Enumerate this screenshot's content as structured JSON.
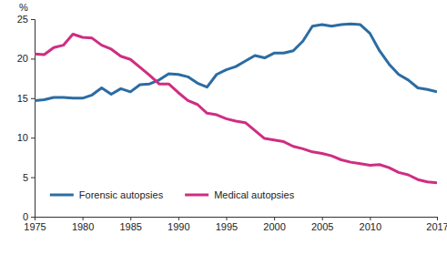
{
  "chart_data": {
    "type": "line",
    "ylabel": "%",
    "x": [
      1975,
      1976,
      1977,
      1978,
      1979,
      1980,
      1981,
      1982,
      1983,
      1984,
      1985,
      1986,
      1987,
      1988,
      1989,
      1990,
      1991,
      1992,
      1993,
      1994,
      1995,
      1996,
      1997,
      1998,
      1999,
      2000,
      2001,
      2002,
      2003,
      2004,
      2005,
      2006,
      2007,
      2008,
      2009,
      2010,
      2011,
      2012,
      2013,
      2014,
      2015,
      2016,
      2017
    ],
    "series": [
      {
        "name": "Forensic autopsies",
        "color": "#2b6ca3",
        "values": [
          14.7,
          14.8,
          15.1,
          15.1,
          15.0,
          15.0,
          15.4,
          16.3,
          15.5,
          16.2,
          15.8,
          16.7,
          16.8,
          17.3,
          18.1,
          18.0,
          17.7,
          16.9,
          16.4,
          18.0,
          18.6,
          19.0,
          19.7,
          20.4,
          20.1,
          20.7,
          20.7,
          21.0,
          22.2,
          24.1,
          24.3,
          24.1,
          24.3,
          24.4,
          24.3,
          23.2,
          21.0,
          19.3,
          18.0,
          17.3,
          16.3,
          16.1,
          15.8
        ]
      },
      {
        "name": "Medical autopsies",
        "color": "#cf2d82",
        "values": [
          20.6,
          20.5,
          21.4,
          21.7,
          23.1,
          22.7,
          22.6,
          21.7,
          21.2,
          20.3,
          19.9,
          18.9,
          17.9,
          16.8,
          16.8,
          15.7,
          14.7,
          14.2,
          13.1,
          12.9,
          12.4,
          12.1,
          11.9,
          10.9,
          9.9,
          9.7,
          9.5,
          8.9,
          8.6,
          8.2,
          8.0,
          7.7,
          7.2,
          6.9,
          6.7,
          6.5,
          6.6,
          6.2,
          5.6,
          5.3,
          4.7,
          4.4,
          4.3
        ]
      }
    ],
    "xlim": [
      1975,
      2017
    ],
    "xticks": [
      1975,
      1980,
      1985,
      1990,
      1995,
      2000,
      2005,
      2010,
      2017
    ],
    "ylim": [
      0,
      25
    ],
    "yticks": [
      0,
      5,
      10,
      15,
      20,
      25
    ],
    "grid": false,
    "legend": "bottom"
  }
}
